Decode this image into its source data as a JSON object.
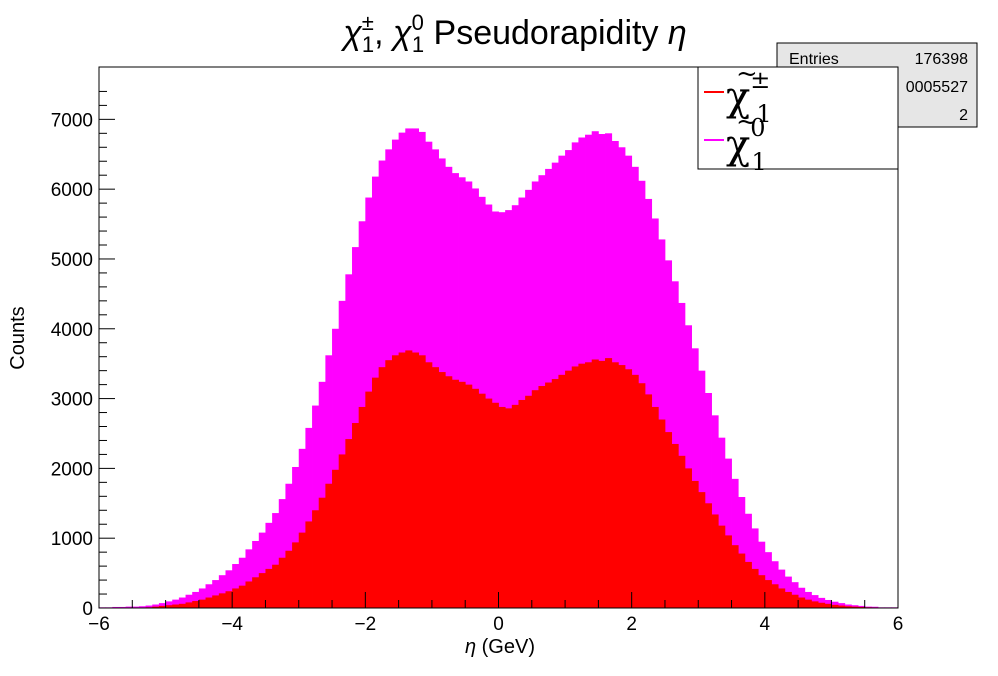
{
  "chart_data": {
    "type": "bar",
    "title_parts": [
      "χ",
      "±",
      "1",
      ",   ",
      "χ",
      "0",
      "1",
      " Pseudorapidity ",
      "η"
    ],
    "xlabel_symbol": "η",
    "xlabel_text": " (GeV)",
    "ylabel": "Counts",
    "xlim": [
      -6,
      6
    ],
    "ylim": [
      0,
      7750
    ],
    "x_ticks": [
      -6,
      -4,
      -2,
      0,
      2,
      4,
      6
    ],
    "x_tick_labels": [
      "−6",
      "−4",
      "−2",
      "0",
      "2",
      "4",
      "6"
    ],
    "y_ticks": [
      0,
      1000,
      2000,
      3000,
      4000,
      5000,
      6000,
      7000
    ],
    "y_tick_labels": [
      "0",
      "1000",
      "2000",
      "3000",
      "4000",
      "5000",
      "6000",
      "7000"
    ],
    "bin_width": 0.1,
    "bin_start": -6,
    "stacked": true,
    "series": [
      {
        "name_parts": [
          "χ",
          "±",
          "1"
        ],
        "color": "#ff0000",
        "values": [
          5,
          5,
          5,
          5,
          5,
          5,
          5,
          10,
          20,
          30,
          40,
          50,
          60,
          80,
          100,
          120,
          150,
          180,
          210,
          240,
          280,
          320,
          380,
          440,
          500,
          560,
          620,
          720,
          820,
          940,
          1080,
          1240,
          1400,
          1580,
          1780,
          1980,
          2200,
          2420,
          2650,
          2880,
          3100,
          3300,
          3450,
          3550,
          3620,
          3660,
          3690,
          3660,
          3620,
          3520,
          3450,
          3380,
          3320,
          3270,
          3240,
          3200,
          3140,
          3070,
          3000,
          2940,
          2880,
          2860,
          2910,
          2980,
          3040,
          3120,
          3180,
          3230,
          3280,
          3340,
          3400,
          3460,
          3500,
          3520,
          3560,
          3540,
          3580,
          3520,
          3480,
          3420,
          3340,
          3220,
          3060,
          2880,
          2700,
          2520,
          2350,
          2180,
          2000,
          1820,
          1660,
          1500,
          1340,
          1180,
          1040,
          900,
          780,
          660,
          560,
          470,
          400,
          340,
          280,
          230,
          190,
          150,
          120,
          95,
          75,
          60,
          45,
          35,
          25,
          20,
          15,
          10,
          8,
          5,
          5,
          5
        ]
      },
      {
        "name_parts": [
          "χ",
          "0",
          "1"
        ],
        "color": "#ff00ff",
        "values": [
          5,
          5,
          10,
          10,
          15,
          15,
          20,
          25,
          30,
          40,
          55,
          70,
          90,
          110,
          130,
          160,
          190,
          220,
          260,
          300,
          350,
          400,
          460,
          520,
          580,
          660,
          740,
          840,
          960,
          1080,
          1200,
          1340,
          1500,
          1660,
          1840,
          2020,
          2200,
          2360,
          2520,
          2660,
          2780,
          2880,
          2960,
          3020,
          3090,
          3150,
          3180,
          3210,
          3200,
          3160,
          3120,
          3060,
          3000,
          2960,
          2930,
          2910,
          2870,
          2820,
          2780,
          2740,
          2790,
          2840,
          2860,
          2900,
          2950,
          2990,
          3020,
          3060,
          3100,
          3140,
          3160,
          3210,
          3240,
          3260,
          3270,
          3250,
          3220,
          3170,
          3120,
          3060,
          2980,
          2900,
          2800,
          2700,
          2580,
          2460,
          2330,
          2190,
          2050,
          1900,
          1740,
          1580,
          1420,
          1260,
          1100,
          950,
          810,
          690,
          580,
          480,
          400,
          330,
          270,
          220,
          180,
          140,
          110,
          90,
          70,
          55,
          45,
          35,
          25,
          20,
          15,
          10,
          10,
          5,
          5,
          5
        ]
      }
    ],
    "stats": {
      "entries_label": "Entries",
      "entries_value": "176398",
      "row2_value": "0005527",
      "row3_value": "2"
    }
  }
}
